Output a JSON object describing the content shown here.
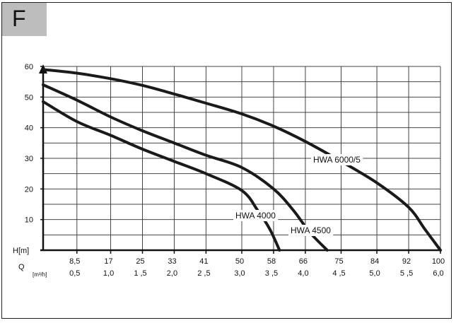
{
  "panel_letter": "F",
  "chart_data": {
    "type": "line",
    "y_axis": {
      "label": "H[m]",
      "ticks": [
        10,
        20,
        30,
        40,
        50,
        60
      ],
      "range": [
        0,
        60
      ]
    },
    "x_axis": {
      "label": "Q",
      "unit_label": "[m³/h]",
      "range": [
        0,
        100
      ],
      "ticks_top": [
        "8,5",
        "17",
        "25",
        "33",
        "41",
        "50",
        "58",
        "66",
        "75",
        "84",
        "92",
        "100"
      ],
      "ticks_bottom": [
        "0,5",
        "1,0",
        "1 ,5",
        "2,0",
        "2 ,5",
        "3,0",
        "3 ,5",
        "4,0",
        "4 ,5",
        "5,0",
        "5 ,5",
        "6,0"
      ],
      "tick_positions": [
        8.5,
        17,
        25,
        33,
        41,
        50,
        58,
        66,
        75,
        84,
        92,
        100
      ]
    },
    "grid": true,
    "series": [
      {
        "name": "HWA 4000",
        "label": "HWA 4000",
        "x": [
          0,
          8.5,
          17,
          25,
          33,
          41,
          50,
          54,
          57,
          59.5
        ],
        "y": [
          48.5,
          42,
          37.5,
          33,
          29,
          25,
          19.5,
          13,
          7,
          0
        ]
      },
      {
        "name": "HWA 4500",
        "label": "HWA 4500",
        "x": [
          0,
          8.5,
          17,
          25,
          33,
          41,
          50,
          58,
          63,
          67,
          71.5
        ],
        "y": [
          54,
          49,
          43.5,
          39,
          35,
          31,
          27,
          20,
          13,
          6,
          0
        ]
      },
      {
        "name": "HWA 6000/5",
        "label": "HWA 6000/5",
        "x": [
          0,
          8.5,
          17,
          25,
          33,
          41,
          50,
          58,
          66,
          75,
          84,
          92,
          96,
          100
        ],
        "y": [
          59,
          57.8,
          56,
          53.8,
          51,
          48,
          44.5,
          40.5,
          35.5,
          29,
          22,
          14,
          7,
          0
        ]
      }
    ]
  }
}
